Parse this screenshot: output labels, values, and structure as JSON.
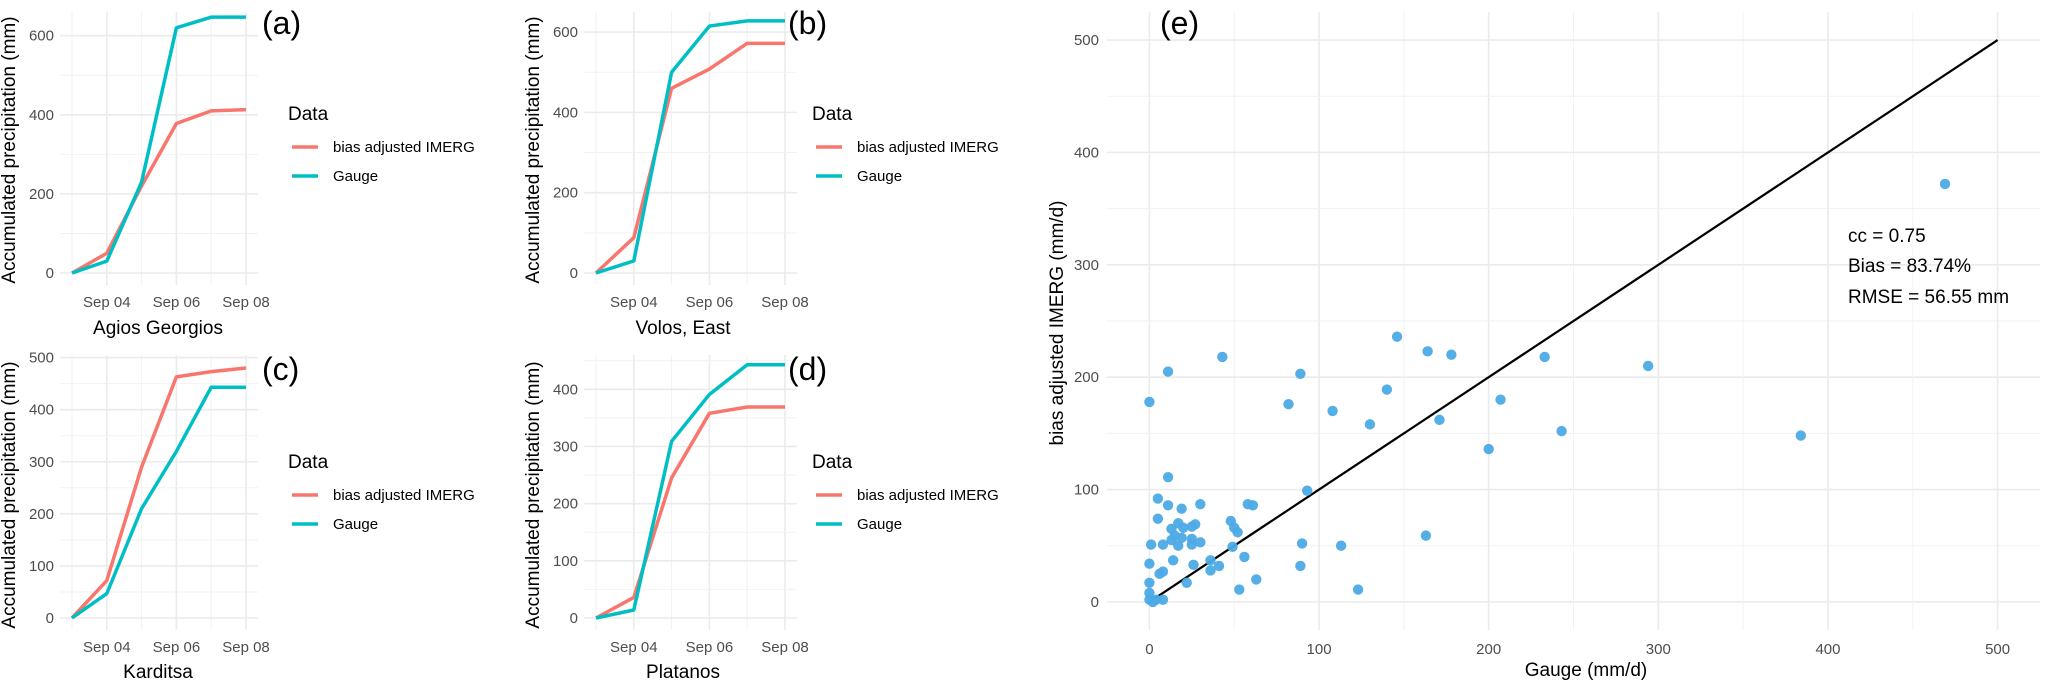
{
  "colors": {
    "imerg": "#F8766D",
    "gauge": "#00BFC4",
    "scatter_point": "#4DAAE6",
    "reference_line": "#000000",
    "grid": "#EBEBEB"
  },
  "legend": {
    "title": "Data",
    "items": [
      {
        "key": "imerg",
        "label": "bias adjusted IMERG"
      },
      {
        "key": "gauge",
        "label": "Gauge"
      }
    ]
  },
  "chart_data": [
    {
      "type": "line",
      "panel_label": "(a)",
      "xlabel": "Agios Georgios",
      "ylabel": "Accumulated precipitation (mm)",
      "x": [
        "Sep 03",
        "Sep 04",
        "Sep 05",
        "Sep 06",
        "Sep 07",
        "Sep 08"
      ],
      "x_tick_labels": [
        "Sep 04",
        "Sep 06",
        "Sep 08"
      ],
      "ylim": [
        0,
        660
      ],
      "y_ticks": [
        0,
        200,
        400,
        600
      ],
      "grid": true,
      "legend_position": "right",
      "series": [
        {
          "name": "bias adjusted IMERG",
          "values": [
            0,
            50,
            220,
            378,
            410,
            413
          ]
        },
        {
          "name": "Gauge",
          "values": [
            0,
            30,
            230,
            620,
            647,
            647
          ]
        }
      ]
    },
    {
      "type": "line",
      "panel_label": "(b)",
      "xlabel": "Volos, East",
      "ylabel": "Accumulated precipitation (mm)",
      "x": [
        "Sep 03",
        "Sep 04",
        "Sep 05",
        "Sep 06",
        "Sep 07",
        "Sep 08"
      ],
      "x_tick_labels": [
        "Sep 04",
        "Sep 06",
        "Sep 08"
      ],
      "ylim": [
        0,
        650
      ],
      "y_ticks": [
        0,
        200,
        400,
        600
      ],
      "grid": true,
      "legend_position": "right",
      "series": [
        {
          "name": "bias adjusted IMERG",
          "values": [
            0,
            88,
            460,
            508,
            572,
            572
          ]
        },
        {
          "name": "Gauge",
          "values": [
            0,
            30,
            500,
            615,
            628,
            628
          ]
        }
      ]
    },
    {
      "type": "line",
      "panel_label": "(c)",
      "xlabel": "Karditsa",
      "ylabel": "Accumulated precipitation (mm)",
      "x": [
        "Sep 03",
        "Sep 04",
        "Sep 05",
        "Sep 06",
        "Sep 07",
        "Sep 08"
      ],
      "x_tick_labels": [
        "Sep 04",
        "Sep 06",
        "Sep 08"
      ],
      "ylim": [
        0,
        505
      ],
      "y_ticks": [
        0,
        100,
        200,
        300,
        400,
        500
      ],
      "grid": true,
      "legend_position": "right",
      "series": [
        {
          "name": "bias adjusted IMERG",
          "values": [
            0,
            72,
            290,
            463,
            473,
            480
          ]
        },
        {
          "name": "Gauge",
          "values": [
            0,
            47,
            210,
            320,
            443,
            443
          ]
        }
      ]
    },
    {
      "type": "line",
      "panel_label": "(d)",
      "xlabel": "Platanos",
      "ylabel": "Accumulated precipitation (mm)",
      "x": [
        "Sep 03",
        "Sep 04",
        "Sep 05",
        "Sep 06",
        "Sep 07",
        "Sep 08"
      ],
      "x_tick_labels": [
        "Sep 04",
        "Sep 06",
        "Sep 08"
      ],
      "ylim": [
        0,
        460
      ],
      "y_ticks": [
        0,
        100,
        200,
        300,
        400
      ],
      "grid": true,
      "legend_position": "right",
      "series": [
        {
          "name": "bias adjusted IMERG",
          "values": [
            0,
            36,
            245,
            358,
            369,
            369
          ]
        },
        {
          "name": "Gauge",
          "values": [
            0,
            14,
            309,
            391,
            443,
            443
          ]
        }
      ]
    },
    {
      "type": "scatter",
      "panel_label": "(e)",
      "xlabel": "Gauge (mm/d)",
      "ylabel": "bias adjusted IMERG (mm/d)",
      "xlim": [
        -25,
        525
      ],
      "ylim": [
        -25,
        525
      ],
      "x_ticks": [
        0,
        100,
        200,
        300,
        400,
        500
      ],
      "y_ticks": [
        0,
        100,
        200,
        300,
        400,
        500
      ],
      "grid": true,
      "reference_line": {
        "from": [
          0,
          0
        ],
        "to": [
          500,
          500
        ]
      },
      "annotations": [
        "cc = 0.75",
        "Bias = 83.74%",
        "RMSE = 56.55 mm"
      ],
      "points": [
        [
          469,
          372
        ],
        [
          294,
          210
        ],
        [
          384,
          148
        ],
        [
          243,
          152
        ],
        [
          233,
          218
        ],
        [
          207,
          180
        ],
        [
          200,
          136
        ],
        [
          178,
          220
        ],
        [
          171,
          162
        ],
        [
          164,
          223
        ],
        [
          163,
          59
        ],
        [
          146,
          236
        ],
        [
          140,
          189
        ],
        [
          130,
          158
        ],
        [
          123,
          11
        ],
        [
          113,
          50
        ],
        [
          108,
          170
        ],
        [
          93,
          99
        ],
        [
          90,
          52
        ],
        [
          89,
          203
        ],
        [
          89,
          32
        ],
        [
          82,
          176
        ],
        [
          43,
          218
        ],
        [
          11,
          205
        ],
        [
          0,
          178
        ],
        [
          11,
          111
        ],
        [
          5,
          92
        ],
        [
          11,
          86
        ],
        [
          19,
          83
        ],
        [
          30,
          87
        ],
        [
          58,
          87
        ],
        [
          61,
          86
        ],
        [
          5,
          74
        ],
        [
          48,
          72
        ],
        [
          50,
          66
        ],
        [
          52,
          62
        ],
        [
          17,
          70
        ],
        [
          13,
          65
        ],
        [
          20,
          66
        ],
        [
          25,
          67
        ],
        [
          27,
          69
        ],
        [
          15,
          59
        ],
        [
          19,
          57
        ],
        [
          13,
          55
        ],
        [
          17,
          50
        ],
        [
          25,
          56
        ],
        [
          25,
          51
        ],
        [
          30,
          53
        ],
        [
          1,
          51
        ],
        [
          8,
          51
        ],
        [
          49,
          49
        ],
        [
          0,
          34
        ],
        [
          14,
          37
        ],
        [
          26,
          33
        ],
        [
          36,
          37
        ],
        [
          36,
          28
        ],
        [
          41,
          32
        ],
        [
          56,
          40
        ],
        [
          8,
          27
        ],
        [
          6,
          25
        ],
        [
          22,
          17
        ],
        [
          63,
          20
        ],
        [
          53,
          11
        ],
        [
          0,
          17
        ],
        [
          0,
          8
        ],
        [
          0,
          2
        ],
        [
          4,
          2
        ],
        [
          8,
          2
        ],
        [
          2,
          0
        ]
      ]
    }
  ]
}
